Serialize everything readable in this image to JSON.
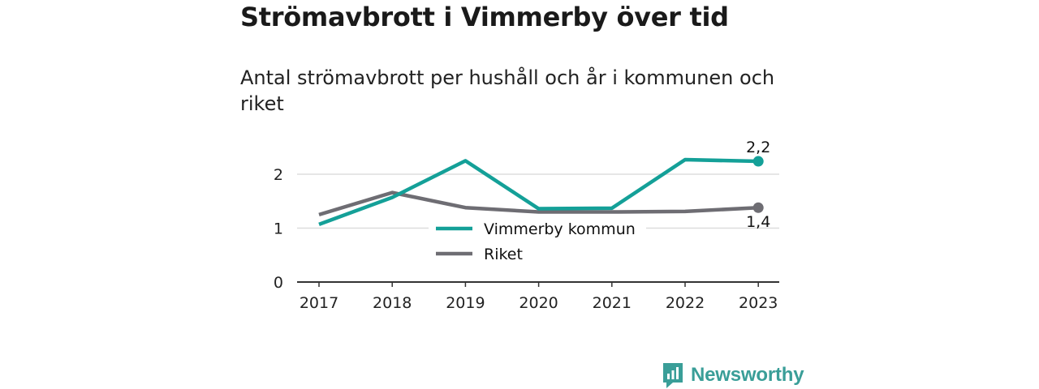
{
  "title": "Strömavbrott i Vimmerby över tid",
  "subtitle": "Antal strömavbrott per hushåll och år i kommunen och riket",
  "brand": "Newsworthy",
  "colors": {
    "teal": "#14a098",
    "gray": "#6e6d73",
    "grid": "#dddddd",
    "axis": "#333333"
  },
  "chart_data": {
    "type": "line",
    "x": [
      "2017",
      "2018",
      "2019",
      "2020",
      "2021",
      "2022",
      "2023"
    ],
    "ylim": [
      0,
      2.5
    ],
    "yticks": [
      "0",
      "1",
      "2"
    ],
    "grid": true,
    "legend_position": "center",
    "series": [
      {
        "name": "Vimmerby kommun",
        "values": [
          1.07,
          1.57,
          2.25,
          1.36,
          1.37,
          2.27,
          2.24
        ],
        "end_label": "2,2"
      },
      {
        "name": "Riket",
        "values": [
          1.25,
          1.66,
          1.38,
          1.3,
          1.3,
          1.31,
          1.38
        ],
        "end_label": "1,4"
      }
    ]
  }
}
